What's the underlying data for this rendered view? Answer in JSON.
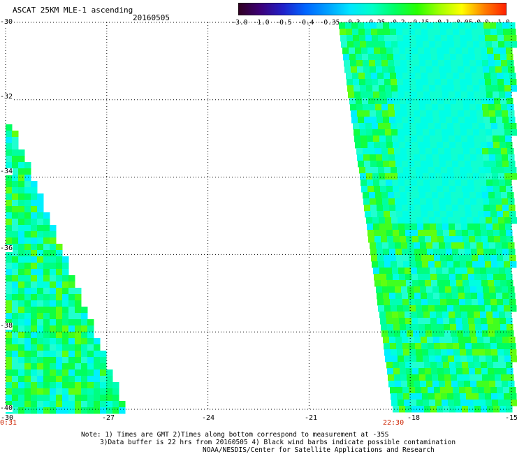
{
  "header": {
    "title": "ASCAT 25KM MLE-1 ascending",
    "date": "20160505"
  },
  "colorbar": {
    "labels": [
      "-3.0",
      "-1.0",
      "-0.5",
      "-0.4",
      "-0.35",
      "-0.3",
      "-0.25",
      "-0.2",
      "-0.15",
      "-0.1",
      "-0.05",
      "0.0",
      "1.0"
    ],
    "colors": [
      "#300020",
      "#3c0078",
      "#2020c8",
      "#0064ff",
      "#00a0ff",
      "#00e6ff",
      "#00ffc8",
      "#00ff64",
      "#28ff00",
      "#a0ff00",
      "#ffff00",
      "#ff8000",
      "#ff1e00"
    ]
  },
  "axes": {
    "lat_labels": [
      "-30",
      "-32",
      "-34",
      "-36",
      "-38",
      "-40"
    ],
    "lon_labels": [
      "-30",
      "-27",
      "-24",
      "-21",
      "-18",
      "-15"
    ],
    "lat_values": [
      -30,
      -32,
      -34,
      -36,
      -38,
      -40
    ],
    "lon_values": [
      -30,
      -27,
      -24,
      -21,
      -18,
      -15
    ]
  },
  "time_labels": {
    "left": "0:31",
    "right": "22:30"
  },
  "notes": {
    "line1": "Note: 1) Times are GMT 2)Times along bottom correspond to measurement at -35S",
    "line2": "3)Data buffer is 22 hrs from 20160505 4) Black wind barbs indicate possible contamination",
    "line3": "NOAA/NESDIS/Center for Satellite Applications and Research"
  }
}
